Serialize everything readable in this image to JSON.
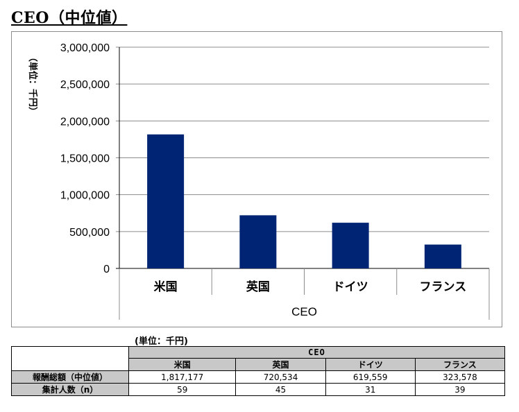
{
  "page": {
    "title": "CEO（中位値）"
  },
  "chart_data": {
    "type": "bar",
    "ylabel": "（単位：千円）",
    "xlabel": "CEO",
    "categories": [
      "米国",
      "英国",
      "ドイツ",
      "フランス"
    ],
    "values": [
      1817177,
      720534,
      619559,
      323578
    ],
    "ylim": [
      0,
      3000000
    ],
    "yticks": [
      0,
      500000,
      1000000,
      1500000,
      2000000,
      2500000,
      3000000
    ],
    "ytick_labels": [
      "0",
      "500,000",
      "1,000,000",
      "1,500,000",
      "2,000,000",
      "2,500,000",
      "3,000,000"
    ],
    "bar_color": "#002474",
    "grid": true,
    "legend": "none"
  },
  "table": {
    "unit_note": "(単位：千円)",
    "group_header": "CEO",
    "columns": [
      "米国",
      "英国",
      "ドイツ",
      "フランス"
    ],
    "rows": [
      {
        "label": "報酬総額（中位値）",
        "values": [
          "1,817,177",
          "720,534",
          "619,559",
          "323,578"
        ]
      },
      {
        "label": "集計人数（n）",
        "values": [
          "59",
          "45",
          "31",
          "39"
        ]
      }
    ]
  }
}
